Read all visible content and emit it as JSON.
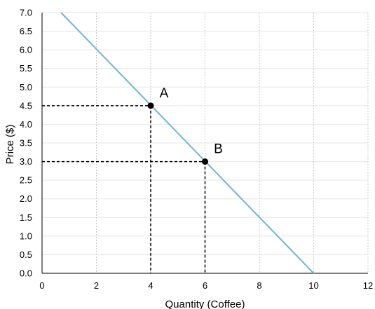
{
  "chart_data": {
    "type": "line",
    "xlabel": "Quantity (Coffee)",
    "ylabel": "Price ($)",
    "xlim": [
      0,
      12
    ],
    "ylim": [
      0,
      7
    ],
    "x_ticks": [
      0,
      2,
      4,
      6,
      8,
      10,
      12
    ],
    "x_tick_labels": [
      "0",
      "2",
      "4",
      "6",
      "8",
      "10",
      "12"
    ],
    "y_ticks": [
      0,
      0.5,
      1,
      1.5,
      2,
      2.5,
      3,
      3.5,
      4,
      4.5,
      5,
      5.5,
      6,
      6.5,
      7
    ],
    "y_tick_labels": [
      "0.0",
      "0.5",
      "1.0",
      "1.5",
      "2.0",
      "2.5",
      "3.0",
      "3.5",
      "4.0",
      "4.5",
      "5.0",
      "5.5",
      "6.0",
      "6.5",
      "7.0"
    ],
    "grid": {
      "horizontal": true,
      "vertical": true,
      "vertical_style": "dotted"
    },
    "series": [
      {
        "x": [
          0.7,
          10
        ],
        "y": [
          7.0,
          0
        ],
        "color": "#6fb6d3"
      }
    ],
    "points": [
      {
        "label": "A",
        "x": 4,
        "y": 4.5,
        "color": "#000000"
      },
      {
        "label": "B",
        "x": 6,
        "y": 3.0,
        "color": "#000000"
      }
    ],
    "guide_lines": {
      "style": "dashed",
      "color": "#000000"
    }
  }
}
